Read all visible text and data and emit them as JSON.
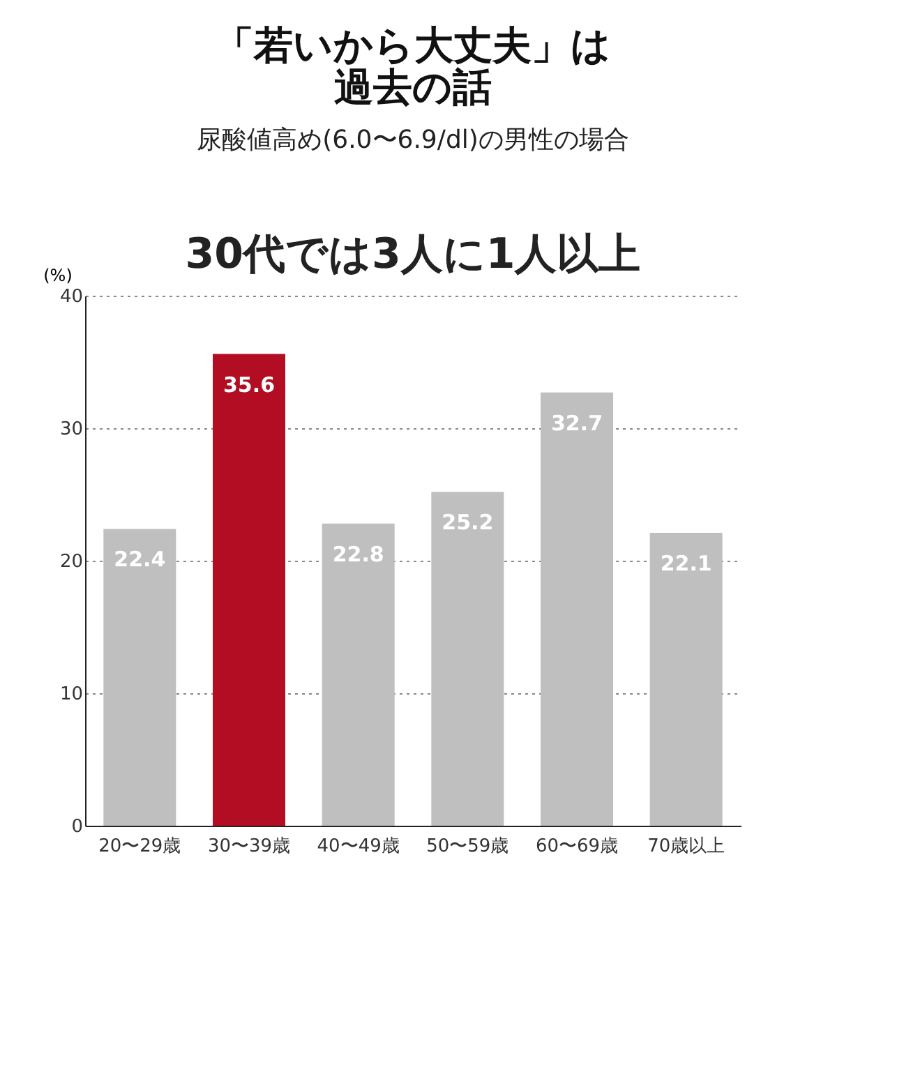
{
  "chart_data": {
    "type": "bar",
    "title": [
      "「若いから大丈夫」は",
      "過去の話"
    ],
    "subtitle": "尿酸値高め(6.0〜6.9/dl)の男性の場合",
    "annotations": [
      "30代では3人に1人以上"
    ],
    "ylabel": "(%)",
    "categories": [
      "20〜29歳",
      "30〜39歳",
      "40〜49歳",
      "50〜59歳",
      "60〜69歳",
      "70歳以上"
    ],
    "values": [
      22.4,
      35.6,
      22.8,
      25.2,
      32.7,
      22.1
    ],
    "colors": [
      "#bfbfbf",
      "#b20d22",
      "#bfbfbf",
      "#bfbfbf",
      "#bfbfbf",
      "#bfbfbf"
    ],
    "ylim": [
      0,
      40
    ],
    "yticks": [
      0,
      10,
      20,
      30,
      40
    ],
    "grid": "y",
    "data_labels": true
  }
}
